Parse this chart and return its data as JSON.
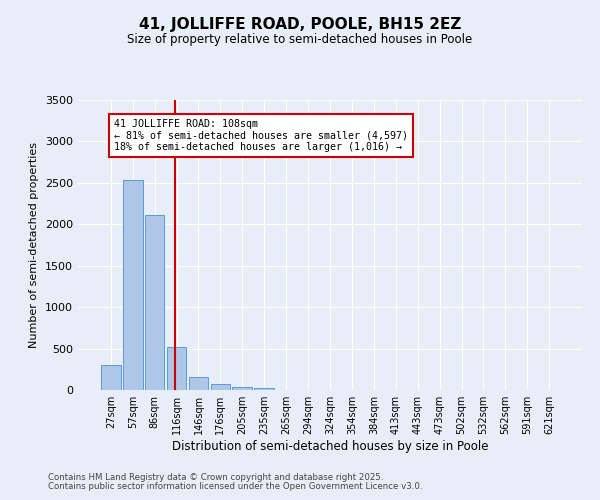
{
  "title": "41, JOLLIFFE ROAD, POOLE, BH15 2EZ",
  "subtitle": "Size of property relative to semi-detached houses in Poole",
  "xlabel": "Distribution of semi-detached houses by size in Poole",
  "ylabel": "Number of semi-detached properties",
  "categories": [
    "27sqm",
    "57sqm",
    "86sqm",
    "116sqm",
    "146sqm",
    "176sqm",
    "205sqm",
    "235sqm",
    "265sqm",
    "294sqm",
    "324sqm",
    "354sqm",
    "384sqm",
    "413sqm",
    "443sqm",
    "473sqm",
    "502sqm",
    "532sqm",
    "562sqm",
    "591sqm",
    "621sqm"
  ],
  "values": [
    305,
    2540,
    2110,
    520,
    155,
    75,
    40,
    30,
    0,
    0,
    0,
    0,
    0,
    0,
    0,
    0,
    0,
    0,
    0,
    0,
    0
  ],
  "bar_color": "#aec6e8",
  "bar_edge_color": "#5b9bd5",
  "annotation_text": "41 JOLLIFFE ROAD: 108sqm\n← 81% of semi-detached houses are smaller (4,597)\n18% of semi-detached houses are larger (1,016) →",
  "annotation_box_color": "#ffffff",
  "annotation_box_edge": "#cc0000",
  "line_color": "#cc0000",
  "ylim": [
    0,
    3500
  ],
  "background_color": "#e8eef8",
  "footer1": "Contains HM Land Registry data © Crown copyright and database right 2025.",
  "footer2": "Contains public sector information licensed under the Open Government Licence v3.0."
}
